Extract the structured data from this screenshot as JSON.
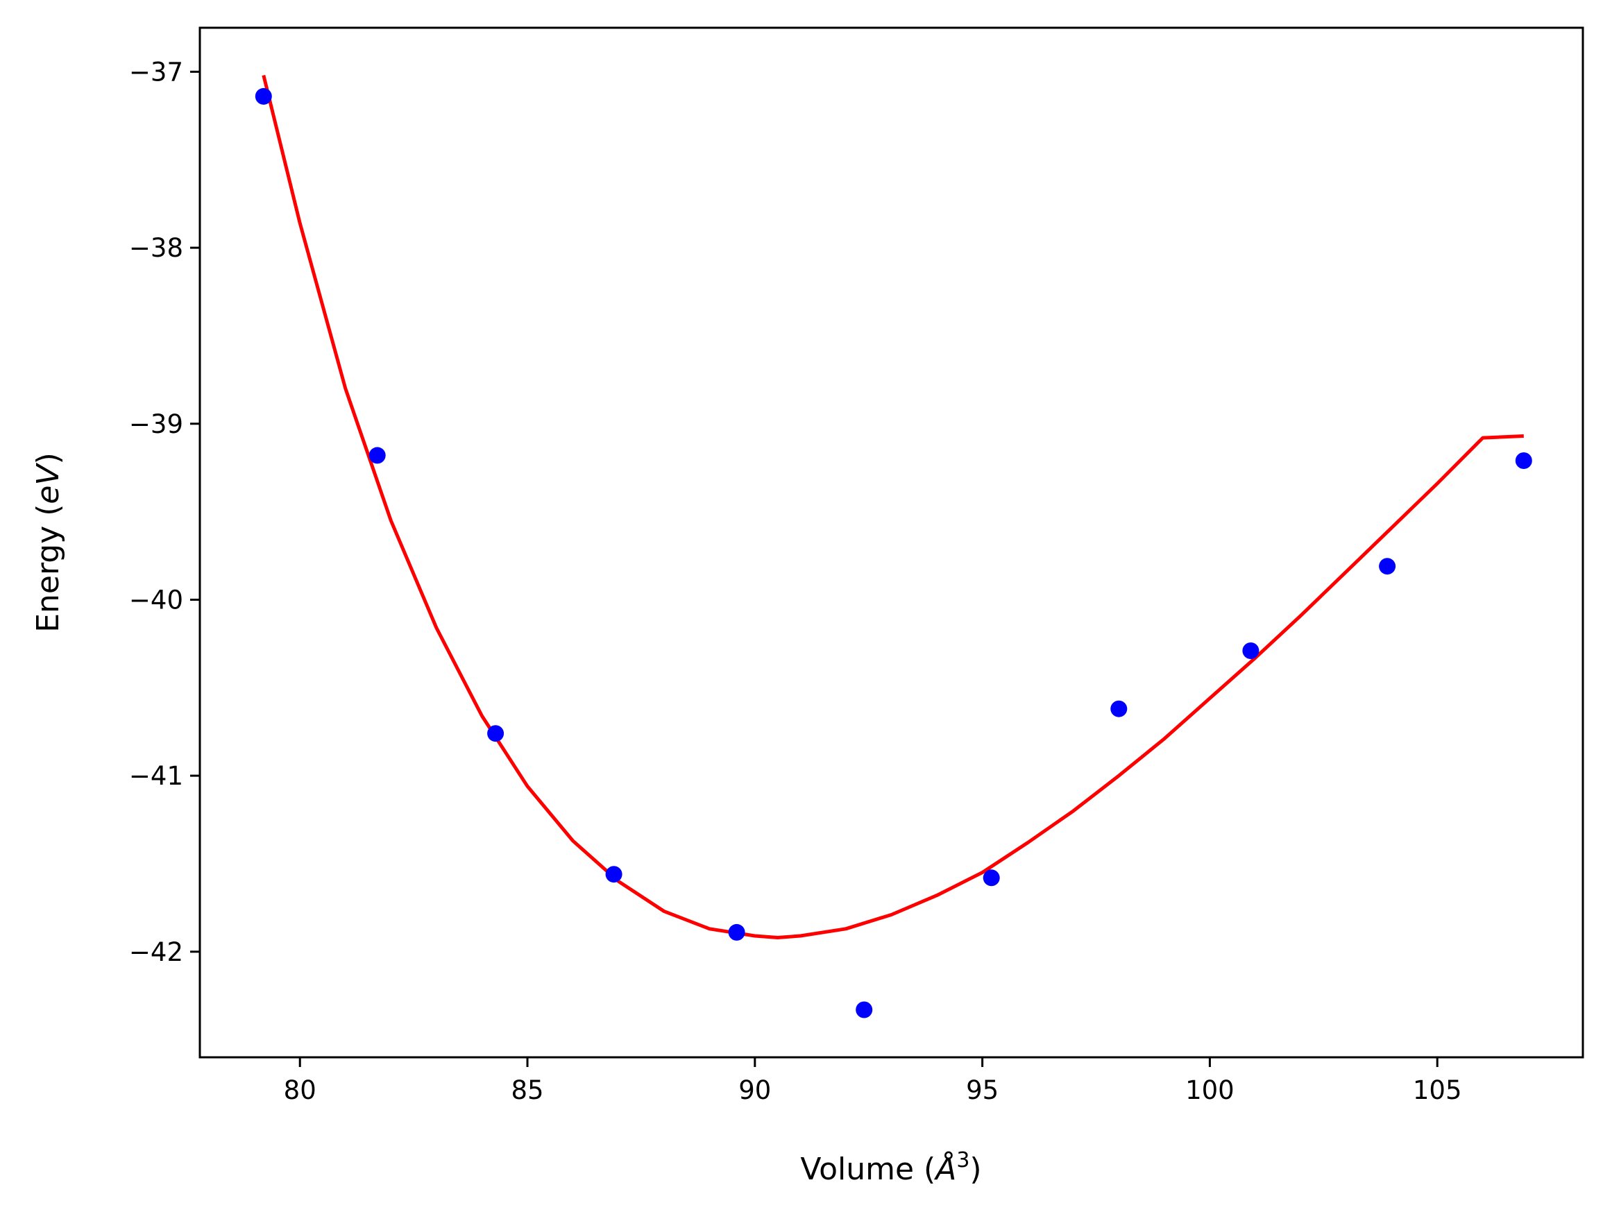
{
  "chart_data": {
    "type": "scatter",
    "xlabel_parts": [
      "Volume (",
      "Å",
      "3",
      ")"
    ],
    "ylabel_parts": [
      "Energy (",
      "eV",
      ")"
    ],
    "xlim": [
      77.8,
      108.2
    ],
    "ylim": [
      -42.6,
      -36.75
    ],
    "xticks": [
      80,
      85,
      90,
      95,
      100,
      105
    ],
    "yticks": [
      -37,
      -38,
      -39,
      -40,
      -41,
      -42
    ],
    "xtick_labels": [
      "80",
      "85",
      "90",
      "95",
      "100",
      "105"
    ],
    "ytick_labels": [
      "−37",
      "−38",
      "−39",
      "−40",
      "−41",
      "−42"
    ],
    "grid": false,
    "series": [
      {
        "kind": "scatter",
        "color": "#0000ff",
        "points": [
          {
            "x": 79.2,
            "y": -37.14
          },
          {
            "x": 81.7,
            "y": -39.18
          },
          {
            "x": 84.3,
            "y": -40.76
          },
          {
            "x": 86.9,
            "y": -41.56
          },
          {
            "x": 89.6,
            "y": -41.89
          },
          {
            "x": 92.4,
            "y": -42.33
          },
          {
            "x": 95.2,
            "y": -41.58
          },
          {
            "x": 98.0,
            "y": -40.62
          },
          {
            "x": 100.9,
            "y": -40.29
          },
          {
            "x": 103.9,
            "y": -39.81
          },
          {
            "x": 106.9,
            "y": -39.21
          }
        ]
      },
      {
        "kind": "line",
        "color": "#ff0000",
        "points": [
          {
            "x": 79.2,
            "y": -37.02
          },
          {
            "x": 80.0,
            "y": -37.86
          },
          {
            "x": 81.0,
            "y": -38.8
          },
          {
            "x": 82.0,
            "y": -39.55
          },
          {
            "x": 83.0,
            "y": -40.16
          },
          {
            "x": 84.0,
            "y": -40.66
          },
          {
            "x": 85.0,
            "y": -41.06
          },
          {
            "x": 86.0,
            "y": -41.37
          },
          {
            "x": 87.0,
            "y": -41.6
          },
          {
            "x": 88.0,
            "y": -41.77
          },
          {
            "x": 89.0,
            "y": -41.87
          },
          {
            "x": 90.0,
            "y": -41.91
          },
          {
            "x": 90.5,
            "y": -41.92
          },
          {
            "x": 91.0,
            "y": -41.91
          },
          {
            "x": 92.0,
            "y": -41.87
          },
          {
            "x": 93.0,
            "y": -41.79
          },
          {
            "x": 94.0,
            "y": -41.68
          },
          {
            "x": 95.0,
            "y": -41.55
          },
          {
            "x": 96.0,
            "y": -41.38
          },
          {
            "x": 97.0,
            "y": -41.2
          },
          {
            "x": 98.0,
            "y": -41.0
          },
          {
            "x": 99.0,
            "y": -40.79
          },
          {
            "x": 100.0,
            "y": -40.56
          },
          {
            "x": 101.0,
            "y": -40.33
          },
          {
            "x": 102.0,
            "y": -40.09
          },
          {
            "x": 103.0,
            "y": -39.84
          },
          {
            "x": 104.0,
            "y": -39.59
          },
          {
            "x": 105.0,
            "y": -39.34
          },
          {
            "x": 106.0,
            "y": -39.08
          },
          {
            "x": 106.9,
            "y": -39.07
          }
        ]
      }
    ]
  }
}
